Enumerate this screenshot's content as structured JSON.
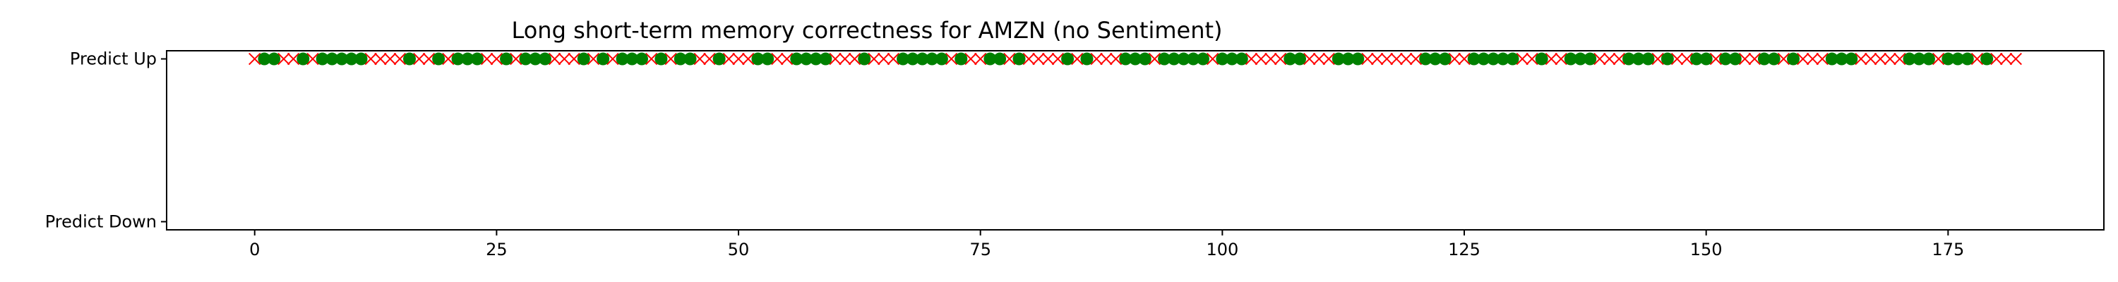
{
  "chart_data": {
    "type": "scatter",
    "title": "Long short-term memory correctness for AMZN (no Sentiment)",
    "xlabel": "",
    "ylabel": "",
    "xlim": [
      -9.1,
      191.1
    ],
    "ylim": [
      -0.05,
      1.05
    ],
    "x_ticks": [
      0,
      25,
      50,
      75,
      100,
      125,
      150,
      175
    ],
    "y_categories": [
      {
        "label": "Predict Down",
        "value": 0
      },
      {
        "label": "Predict Up",
        "value": 1
      }
    ],
    "grid": false,
    "series": [
      {
        "marker": "x",
        "color": "#ff0000",
        "y": 1,
        "x": [
          0,
          3,
          4,
          6,
          12,
          13,
          14,
          15,
          17,
          18,
          20,
          24,
          25,
          27,
          31,
          32,
          33,
          35,
          37,
          41,
          43,
          46,
          47,
          49,
          50,
          51,
          54,
          55,
          60,
          61,
          62,
          64,
          65,
          66,
          72,
          74,
          75,
          78,
          80,
          81,
          82,
          83,
          85,
          87,
          88,
          89,
          93,
          99,
          103,
          104,
          105,
          106,
          109,
          110,
          111,
          115,
          116,
          117,
          118,
          119,
          120,
          124,
          125,
          131,
          132,
          134,
          135,
          139,
          140,
          141,
          145,
          147,
          148,
          151,
          154,
          155,
          158,
          160,
          161,
          162,
          166,
          167,
          168,
          169,
          170,
          174,
          178,
          180,
          181,
          182
        ]
      },
      {
        "marker": "o",
        "color": "#008000",
        "y": 1,
        "x": [
          1,
          2,
          5,
          7,
          8,
          9,
          10,
          11,
          16,
          19,
          21,
          22,
          23,
          26,
          28,
          29,
          30,
          34,
          36,
          38,
          39,
          40,
          42,
          44,
          45,
          48,
          52,
          53,
          56,
          57,
          58,
          59,
          63,
          67,
          68,
          69,
          70,
          71,
          73,
          76,
          77,
          79,
          84,
          86,
          90,
          91,
          92,
          94,
          95,
          96,
          97,
          98,
          100,
          101,
          102,
          107,
          108,
          112,
          113,
          114,
          121,
          122,
          123,
          126,
          127,
          128,
          129,
          130,
          133,
          136,
          137,
          138,
          142,
          143,
          144,
          146,
          149,
          150,
          152,
          153,
          156,
          157,
          159,
          163,
          164,
          165,
          171,
          172,
          173,
          175,
          176,
          177,
          179
        ]
      }
    ]
  }
}
